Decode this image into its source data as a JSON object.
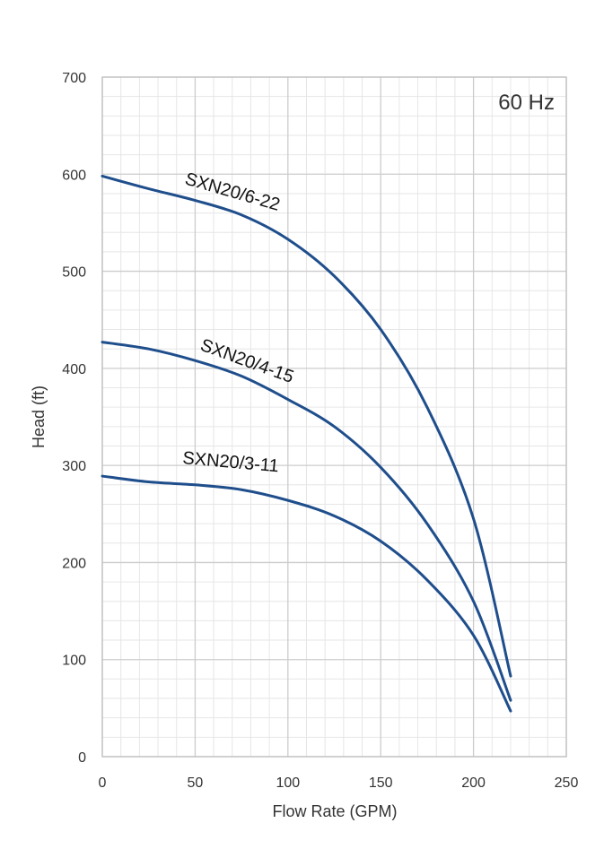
{
  "chart_data": {
    "type": "line",
    "xlabel": "Flow Rate (GPM)",
    "ylabel": "Head (ft)",
    "xlim": [
      0,
      250
    ],
    "ylim": [
      0,
      700
    ],
    "xticks": [
      0,
      50,
      100,
      150,
      200,
      250
    ],
    "yticks": [
      0,
      100,
      200,
      300,
      400,
      500,
      600,
      700
    ],
    "grid": true,
    "annotation": "60 Hz",
    "series": [
      {
        "name": "SXN20/6-22",
        "x": [
          0,
          25,
          50,
          75,
          100,
          125,
          150,
          175,
          200,
          220
        ],
        "y": [
          598,
          585,
          573,
          558,
          533,
          495,
          440,
          360,
          245,
          83
        ]
      },
      {
        "name": "SXN20/4-15",
        "x": [
          0,
          25,
          50,
          75,
          100,
          125,
          150,
          175,
          200,
          220
        ],
        "y": [
          427,
          420,
          408,
          392,
          368,
          340,
          298,
          240,
          160,
          58
        ]
      },
      {
        "name": "SXN20/3-11",
        "x": [
          0,
          25,
          50,
          75,
          100,
          125,
          150,
          175,
          200,
          220
        ],
        "y": [
          289,
          283,
          280,
          275,
          264,
          248,
          222,
          182,
          125,
          47
        ]
      }
    ]
  },
  "style": {
    "line_color": "#1f4e8c",
    "grid_major": "#cccccc",
    "grid_minor": "#e6e6e6",
    "axis_color": "#bfbfbf"
  }
}
